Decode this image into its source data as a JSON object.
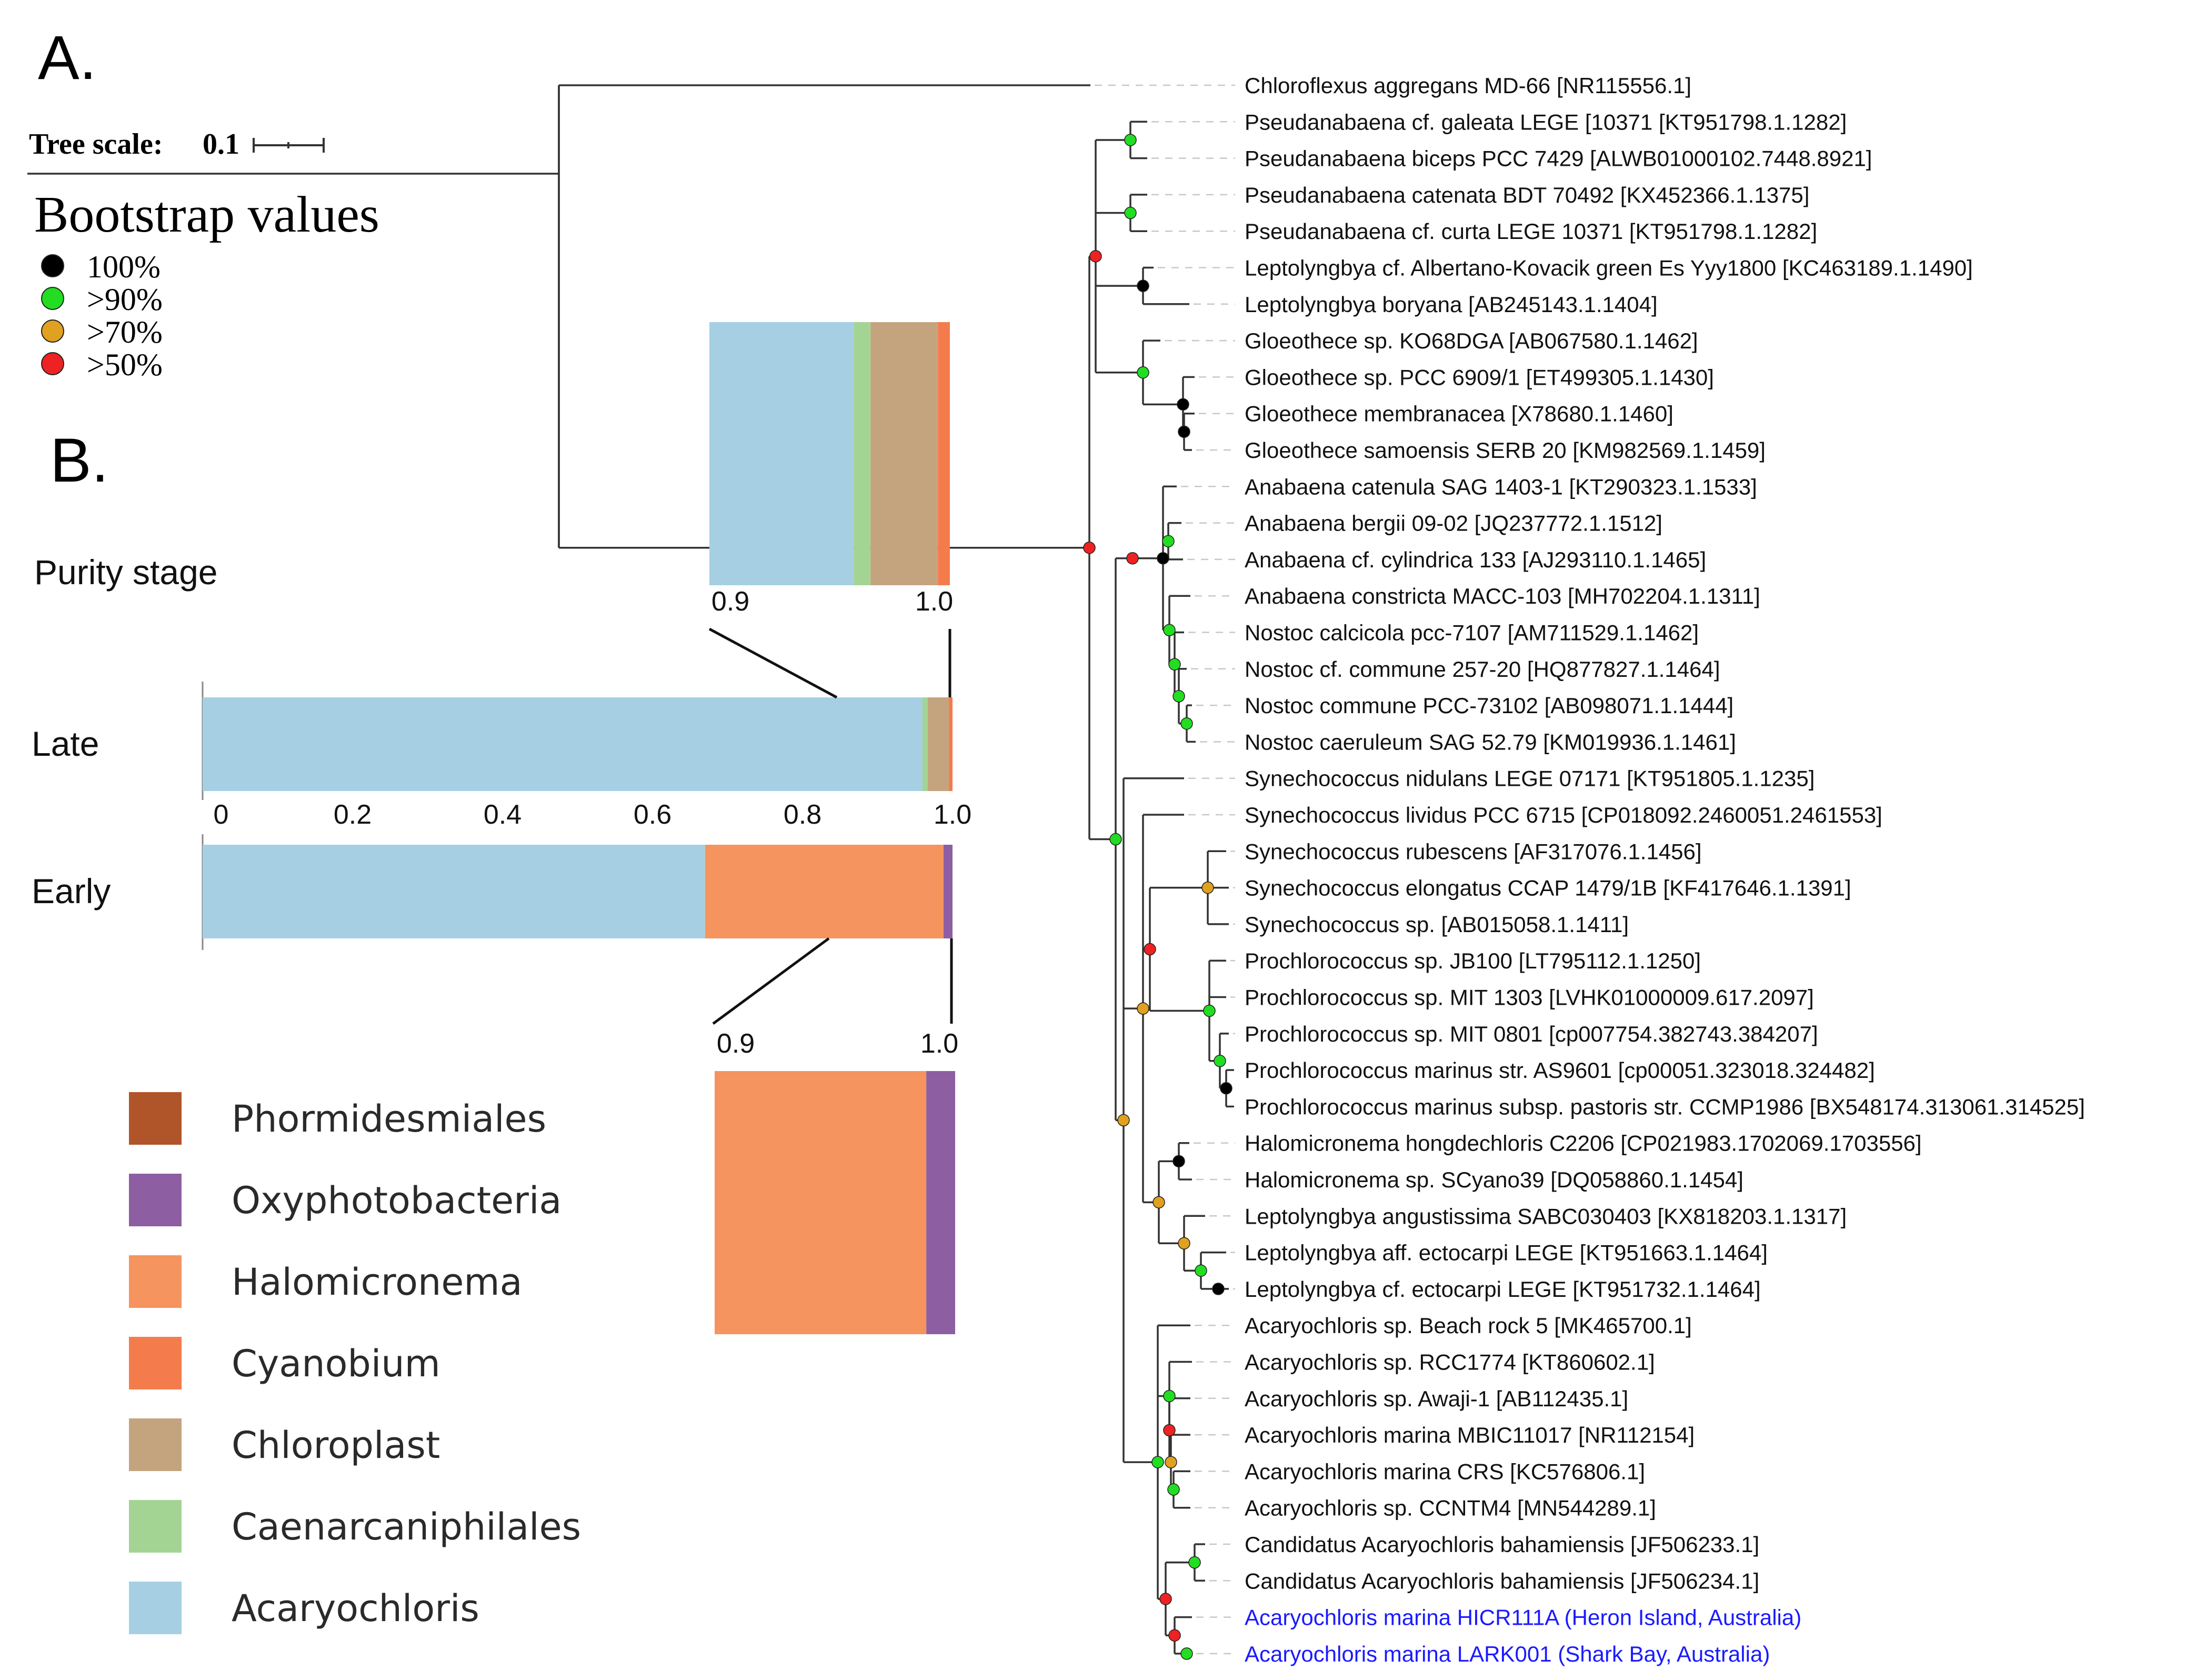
{
  "panel_a": {
    "label": "A."
  },
  "panel_b": {
    "label": "B."
  },
  "chart_data": [
    {
      "type": "tree",
      "title": "",
      "tree_scale": {
        "label": "Tree scale:",
        "value": "0.1"
      },
      "bootstrap_legend": {
        "title": "Bootstrap values",
        "items": [
          {
            "label": "100%",
            "color": "#000000"
          },
          {
            "label": ">90%",
            "color": "#22dd22"
          },
          {
            "label": ">70%",
            "color": "#e0a020"
          },
          {
            "label": ">50%",
            "color": "#ee2222"
          }
        ]
      },
      "leaves": [
        {
          "name": "Chloroflexus aggregans MD-66 [NR115556.1]",
          "highlight": false
        },
        {
          "name": "Pseudanabaena cf. galeata LEGE [10371 [KT951798.1.1282]",
          "highlight": false
        },
        {
          "name": "Pseudanabaena biceps PCC 7429 [ALWB01000102.7448.8921]",
          "highlight": false
        },
        {
          "name": "Pseudanabaena catenata BDT 70492 [KX452366.1.1375]",
          "highlight": false
        },
        {
          "name": "Pseudanabaena cf. curta LEGE 10371 [KT951798.1.1282]",
          "highlight": false
        },
        {
          "name": "Leptolyngbya cf. Albertano-Kovacik green Es Yyy1800 [KC463189.1.1490]",
          "highlight": false
        },
        {
          "name": "Leptolyngbya boryana [AB245143.1.1404]",
          "highlight": false
        },
        {
          "name": "Gloeothece sp. KO68DGA [AB067580.1.1462]",
          "highlight": false
        },
        {
          "name": "Gloeothece sp. PCC 6909/1 [ET499305.1.1430]",
          "highlight": false
        },
        {
          "name": "Gloeothece membranacea [X78680.1.1460]",
          "highlight": false
        },
        {
          "name": "Gloeothece samoensis SERB 20 [KM982569.1.1459]",
          "highlight": false
        },
        {
          "name": "Anabaena catenula SAG 1403-1 [KT290323.1.1533]",
          "highlight": false
        },
        {
          "name": "Anabaena bergii 09-02 [JQ237772.1.1512]",
          "highlight": false
        },
        {
          "name": "Anabaena cf. cylindrica 133 [AJ293110.1.1465]",
          "highlight": false
        },
        {
          "name": "Anabaena constricta MACC-103 [MH702204.1.1311]",
          "highlight": false
        },
        {
          "name": "Nostoc calcicola pcc-7107 [AM711529.1.1462]",
          "highlight": false
        },
        {
          "name": "Nostoc cf. commune 257-20 [HQ877827.1.1464]",
          "highlight": false
        },
        {
          "name": "Nostoc commune PCC-73102 [AB098071.1.1444]",
          "highlight": false
        },
        {
          "name": "Nostoc caeruleum SAG 52.79 [KM019936.1.1461]",
          "highlight": false
        },
        {
          "name": "Synechococcus nidulans LEGE 07171 [KT951805.1.1235]",
          "highlight": false
        },
        {
          "name": "Synechococcus lividus PCC 6715 [CP018092.2460051.2461553]",
          "highlight": false
        },
        {
          "name": "Synechococcus rubescens [AF317076.1.1456]",
          "highlight": false
        },
        {
          "name": "Synechococcus elongatus CCAP 1479/1B [KF417646.1.1391]",
          "highlight": false
        },
        {
          "name": "Synechococcus sp. [AB015058.1.1411]",
          "highlight": false
        },
        {
          "name": "Prochlorococcus sp. JB100 [LT795112.1.1250]",
          "highlight": false
        },
        {
          "name": "Prochlorococcus sp. MIT 1303 [LVHK01000009.617.2097]",
          "highlight": false
        },
        {
          "name": "Prochlorococcus sp. MIT 0801 [cp007754.382743.384207]",
          "highlight": false
        },
        {
          "name": "Prochlorococcus marinus str. AS9601 [cp00051.323018.324482]",
          "highlight": false
        },
        {
          "name": "Prochlorococcus marinus subsp. pastoris str. CCMP1986 [BX548174.313061.314525]",
          "highlight": false
        },
        {
          "name": "Halomicronema hongdechloris C2206 [CP021983.1702069.1703556]",
          "highlight": false
        },
        {
          "name": "Halomicronema sp. SCyano39 [DQ058860.1.1454]",
          "highlight": false
        },
        {
          "name": "Leptolyngbya angustissima SABC030403 [KX818203.1.1317]",
          "highlight": false
        },
        {
          "name": "Leptolyngbya aff. ectocarpi LEGE [KT951663.1.1464]",
          "highlight": false
        },
        {
          "name": "Leptolyngbya cf. ectocarpi LEGE [KT951732.1.1464]",
          "highlight": false
        },
        {
          "name": "Acaryochloris sp. Beach rock 5 [MK465700.1]",
          "highlight": false
        },
        {
          "name": "Acaryochloris sp. RCC1774 [KT860602.1]",
          "highlight": false
        },
        {
          "name": "Acaryochloris sp. Awaji-1 [AB112435.1]",
          "highlight": false
        },
        {
          "name": "Acaryochloris marina MBIC11017 [NR112154]",
          "highlight": false
        },
        {
          "name": "Acaryochloris marina CRS [KC576806.1]",
          "highlight": false
        },
        {
          "name": "Acaryochloris sp. CCNTM4 [MN544289.1]",
          "highlight": false
        },
        {
          "name": "Candidatus Acaryochloris bahamiensis [JF506233.1]",
          "highlight": false
        },
        {
          "name": "Candidatus Acaryochloris bahamiensis [JF506234.1]",
          "highlight": false
        },
        {
          "name": "Acaryochloris marina HICR111A (Heron Island, Australia)",
          "highlight": true,
          "color": "#1a1aff"
        },
        {
          "name": "Acaryochloris marina LARK001 (Shark Bay, Australia)",
          "highlight": true,
          "color": "#1a1aff"
        }
      ]
    },
    {
      "type": "bar",
      "orientation": "horizontal",
      "stacked": true,
      "title": "Purity stage",
      "categories": [
        "Late",
        "Early"
      ],
      "xlim": [
        0,
        1.0
      ],
      "xticks": [
        "0",
        "0.2",
        "0.4",
        "0.6",
        "0.8",
        "1.0"
      ],
      "series": [
        {
          "name": "Acaryochloris",
          "color": "#a6cfe3",
          "values": [
            0.96,
            0.67
          ]
        },
        {
          "name": "Caenarcaniphilales",
          "color": "#a4d494",
          "values": [
            0.007,
            0.0
          ]
        },
        {
          "name": "Chloroplast",
          "color": "#c4a47e",
          "values": [
            0.028,
            0.0
          ]
        },
        {
          "name": "Cyanobium",
          "color": "#f47c4c",
          "values": [
            0.005,
            0.0
          ]
        },
        {
          "name": "Halomicronema",
          "color": "#f5945e",
          "values": [
            0.0,
            0.318
          ]
        },
        {
          "name": "Oxyphotobacteria",
          "color": "#8e5ea2",
          "values": [
            0.0,
            0.012
          ]
        },
        {
          "name": "Phormidesmiales",
          "color": "#b0552a",
          "values": [
            0.0,
            0.0
          ]
        }
      ],
      "zoom_insets": [
        {
          "category": "Late",
          "range": [
            0.9,
            1.0
          ],
          "tick_labels": [
            "0.9",
            "1.0"
          ]
        },
        {
          "category": "Early",
          "range": [
            0.9,
            1.0
          ],
          "tick_labels": [
            "0.9",
            "1.0"
          ]
        }
      ]
    }
  ]
}
